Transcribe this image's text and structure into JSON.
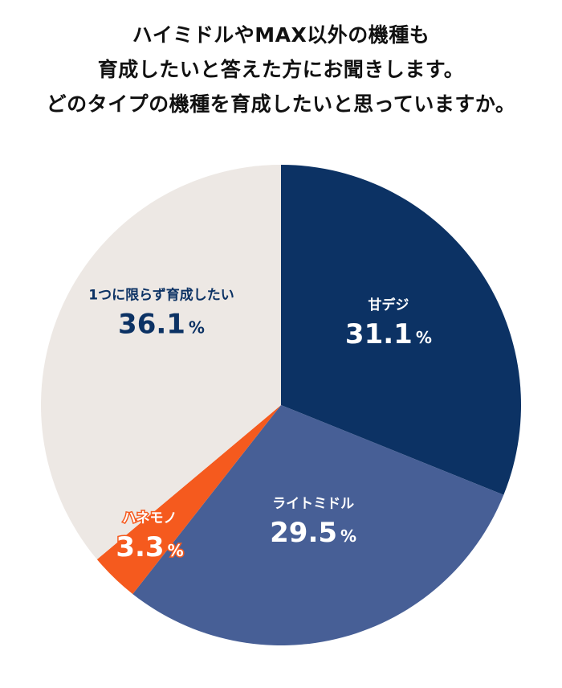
{
  "title_lines": [
    "ハイミドルやMAX以外の機種も",
    "育成したいと答えた方にお聞きします。",
    "どのタイプの機種を育成したいと思っていますか。"
  ],
  "chart_data": {
    "type": "pie",
    "title": "ハイミドルやMAX以外の機種も育成したいと答えた方にお聞きします。どのタイプの機種を育成したいと思っていますか。",
    "unit": "%",
    "slices": [
      {
        "label": "甘デジ",
        "value": 31.1,
        "value_text": "31.1",
        "color": "#0c3264",
        "label_color": "#ffffff"
      },
      {
        "label": "ライトミドル",
        "value": 29.5,
        "value_text": "29.5",
        "color": "#475f96",
        "label_color": "#ffffff"
      },
      {
        "label": "ハネモノ",
        "value": 3.3,
        "value_text": "3.3",
        "color": "#f55a1e",
        "label_color": "#ffffff",
        "label_outline": "#f55a1e"
      },
      {
        "label": "1つに限らず育成したい",
        "value": 36.1,
        "value_text": "36.1",
        "color": "#ede8e4",
        "label_color": "#0c3264"
      }
    ]
  }
}
